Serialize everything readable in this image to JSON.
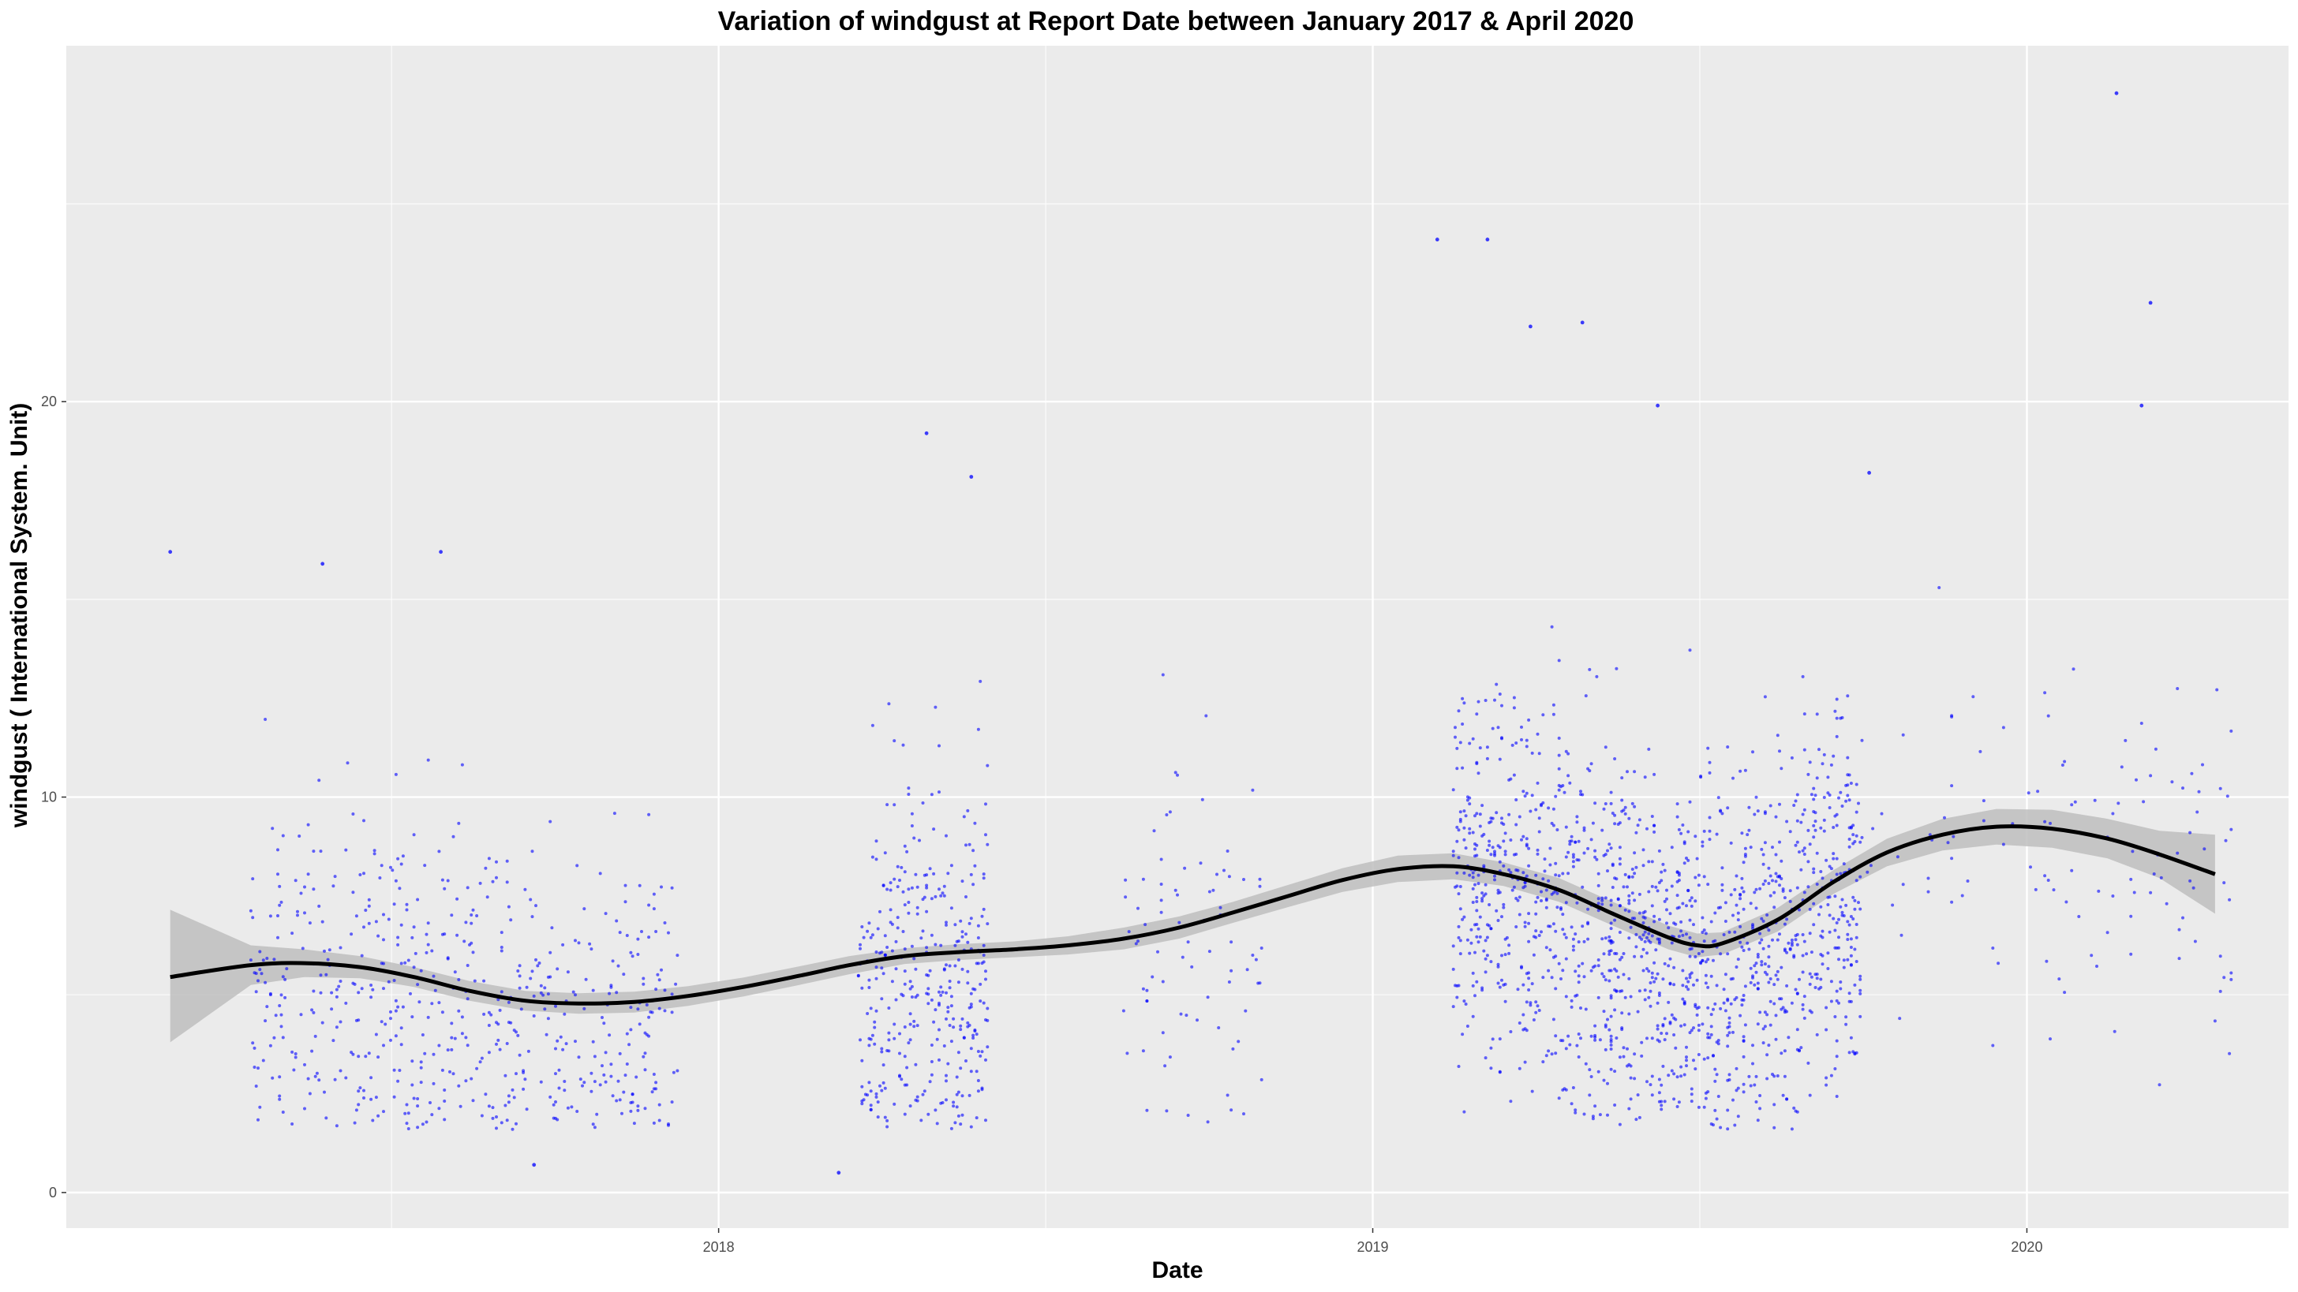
{
  "chart_data": {
    "type": "scatter",
    "title": "Variation of  windgust  at Report Date between January 2017 & April 2020",
    "xlabel": "Date",
    "ylabel": "windgust ( International System. Unit)",
    "x_tick_labels": [
      "2018",
      "2019",
      "2020"
    ],
    "x_tick_values": [
      "2018-01-01",
      "2019-01-01",
      "2020-01-01"
    ],
    "y_tick_labels": [
      "0",
      "10",
      "20"
    ],
    "y_tick_values": [
      0,
      10,
      20
    ],
    "xlim": [
      "2017-01-02",
      "2020-05-26"
    ],
    "ylim": [
      -0.9,
      29
    ],
    "grid": true,
    "legend": "none",
    "colors": {
      "panel_background": "#ebebeb",
      "grid": "#ffffff",
      "points": "#0000ff",
      "smooth_line": "#000000",
      "confidence_band": "#bebebe"
    },
    "point_clusters": [
      {
        "start": "2017-04-15",
        "end": "2017-12-10",
        "n": 560
      },
      {
        "start": "2018-03-20",
        "end": "2018-06-01",
        "n": 360
      },
      {
        "start": "2018-08-15",
        "end": "2018-11-01",
        "n": 80
      },
      {
        "start": "2019-02-15",
        "end": "2019-10-01",
        "n": 1450
      },
      {
        "start": "2019-10-01",
        "end": "2020-04-25",
        "n": 120
      }
    ],
    "notable_points": [
      {
        "x": "2017-03-01",
        "y": 16.2
      },
      {
        "x": "2017-05-25",
        "y": 15.9
      },
      {
        "x": "2017-07-30",
        "y": 16.2
      },
      {
        "x": "2018-04-27",
        "y": 19.2
      },
      {
        "x": "2018-05-22",
        "y": 18.1
      },
      {
        "x": "2019-02-06",
        "y": 24.1
      },
      {
        "x": "2019-03-06",
        "y": 24.1
      },
      {
        "x": "2019-03-30",
        "y": 21.9
      },
      {
        "x": "2019-04-28",
        "y": 22.0
      },
      {
        "x": "2019-06-09",
        "y": 19.9
      },
      {
        "x": "2019-10-05",
        "y": 18.2
      },
      {
        "x": "2020-02-20",
        "y": 27.8
      },
      {
        "x": "2020-03-10",
        "y": 22.5
      },
      {
        "x": "2020-03-05",
        "y": 19.9
      },
      {
        "x": "2018-03-09",
        "y": 0.5
      },
      {
        "x": "2017-09-20",
        "y": 0.7
      }
    ],
    "smooth": {
      "x": [
        "2017-03-01",
        "2017-04-15",
        "2017-05-15",
        "2017-06-15",
        "2017-07-15",
        "2017-08-15",
        "2017-09-15",
        "2017-10-15",
        "2017-11-15",
        "2017-12-15",
        "2018-01-15",
        "2018-02-15",
        "2018-03-15",
        "2018-04-15",
        "2018-05-15",
        "2018-06-15",
        "2018-07-15",
        "2018-08-15",
        "2018-09-15",
        "2018-10-15",
        "2018-11-15",
        "2018-12-15",
        "2019-01-15",
        "2019-02-15",
        "2019-03-15",
        "2019-04-15",
        "2019-05-15",
        "2019-06-15",
        "2019-07-01",
        "2019-07-15",
        "2019-08-15",
        "2019-09-15",
        "2019-10-15",
        "2019-11-15",
        "2019-12-15",
        "2020-01-15",
        "2020-02-15",
        "2020-03-15",
        "2020-04-15"
      ],
      "y": [
        5.45,
        5.75,
        5.8,
        5.7,
        5.45,
        5.1,
        4.85,
        4.78,
        4.82,
        4.97,
        5.2,
        5.48,
        5.75,
        5.98,
        6.08,
        6.15,
        6.25,
        6.42,
        6.7,
        7.08,
        7.5,
        7.9,
        8.18,
        8.25,
        8.05,
        7.65,
        7.05,
        6.45,
        6.25,
        6.3,
        6.9,
        7.85,
        8.6,
        9.05,
        9.25,
        9.2,
        8.95,
        8.55,
        8.05
      ],
      "lower": [
        3.8,
        5.25,
        5.45,
        5.42,
        5.2,
        4.85,
        4.6,
        4.52,
        4.55,
        4.72,
        4.96,
        5.25,
        5.52,
        5.78,
        5.88,
        5.95,
        6.02,
        6.15,
        6.42,
        6.82,
        7.22,
        7.6,
        7.85,
        7.92,
        7.75,
        7.35,
        6.75,
        6.15,
        5.95,
        6.02,
        6.6,
        7.55,
        8.25,
        8.65,
        8.8,
        8.72,
        8.45,
        7.95,
        7.05
      ],
      "upper": [
        7.15,
        6.25,
        6.15,
        5.98,
        5.7,
        5.35,
        5.1,
        5.04,
        5.08,
        5.22,
        5.44,
        5.72,
        5.98,
        6.18,
        6.28,
        6.35,
        6.48,
        6.7,
        6.98,
        7.35,
        7.78,
        8.2,
        8.52,
        8.58,
        8.35,
        7.95,
        7.35,
        6.75,
        6.55,
        6.58,
        7.2,
        8.15,
        8.95,
        9.45,
        9.7,
        9.68,
        9.45,
        9.15,
        9.05
      ]
    }
  }
}
